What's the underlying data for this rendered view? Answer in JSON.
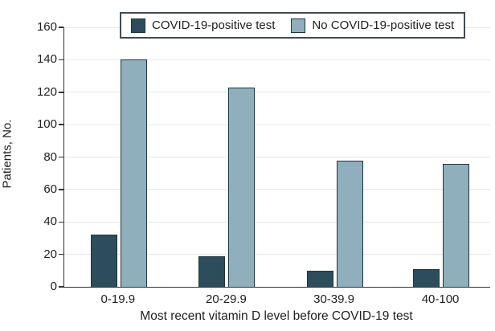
{
  "chart_data": {
    "type": "bar",
    "title": "",
    "categories": [
      "0-19.9",
      "20-29.9",
      "30-39.9",
      "40-100"
    ],
    "series": [
      {
        "name": "COVID-19-positive test",
        "color": "#2E4D5C",
        "values": [
          32,
          19,
          10,
          11
        ]
      },
      {
        "name": "No COVID-19-positive test",
        "color": "#8FAFBC",
        "values": [
          140,
          123,
          78,
          76
        ]
      }
    ],
    "xlabel": "Most recent vitamin D level before COVID-19 test",
    "ylabel": "Patients, No.",
    "ylim": [
      0,
      160
    ],
    "y_ticks": [
      0,
      20,
      40,
      60,
      80,
      100,
      120,
      140,
      160
    ],
    "grid": true,
    "legend_position": "top"
  },
  "colors": {
    "bar_border": "#1F3540",
    "grid_line": "#E7E7E7",
    "axis_line": "#333333",
    "text": "#212121",
    "legend_border": "#3F4C54",
    "background": "#FFFFFF"
  }
}
